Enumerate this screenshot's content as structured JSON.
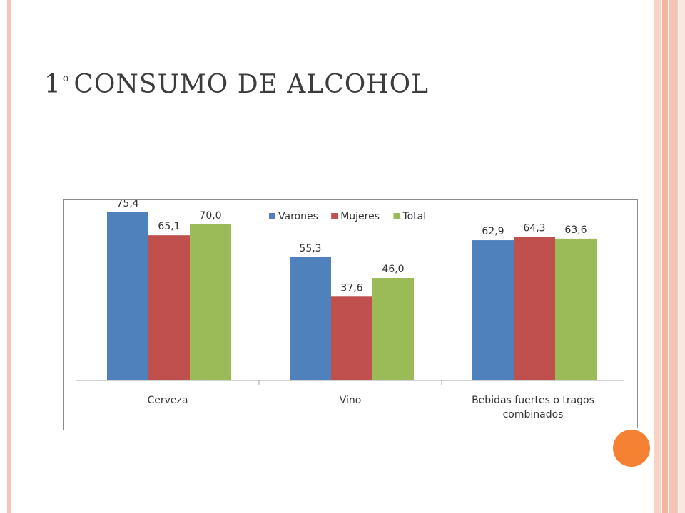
{
  "slide": {
    "title_number": "1",
    "title_superscript": "o",
    "title_text": "CONSUMO DE ALCOHOL"
  },
  "colors": {
    "left_border": "#f6c3b4",
    "right_stripes": [
      "#f9d3c6",
      "#f4b49e",
      "#f6c3b4",
      "#fde6de"
    ],
    "orange_dot": "#f58132",
    "title_text": "#3c3c3c"
  },
  "chart_data": {
    "type": "bar",
    "title": "",
    "xlabel": "",
    "ylabel": "",
    "ylim": [
      0,
      80
    ],
    "grid": false,
    "legend_position": "top-center",
    "categories": [
      [
        "Cerveza"
      ],
      [
        "Vino"
      ],
      [
        "Bebidas fuertes o tragos",
        "combinados"
      ]
    ],
    "series": [
      {
        "name": "Varones",
        "color": "#4f81bd",
        "values": [
          75.4,
          55.3,
          62.9
        ],
        "labels": [
          "75,4",
          "55,3",
          "62,9"
        ]
      },
      {
        "name": "Mujeres",
        "color": "#c0504d",
        "values": [
          65.1,
          37.6,
          64.3
        ],
        "labels": [
          "65,1",
          "37,6",
          "64,3"
        ]
      },
      {
        "name": "Total",
        "color": "#9bbb59",
        "values": [
          70.0,
          46.0,
          63.6
        ],
        "labels": [
          "70,0",
          "46,0",
          "63,6"
        ]
      }
    ]
  }
}
